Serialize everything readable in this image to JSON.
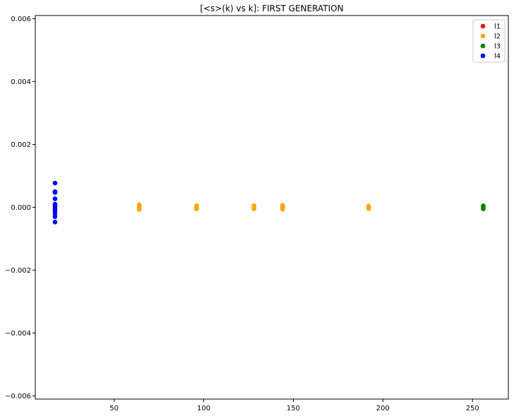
{
  "chart_data": {
    "type": "scatter",
    "title": "[<s>(k) vs k]: FIRST GENERATION",
    "xlabel": "",
    "ylabel": "",
    "xlim": [
      6,
      270
    ],
    "ylim": [
      -0.0061,
      0.0061
    ],
    "xticks": [
      50,
      100,
      150,
      200,
      250
    ],
    "yticks": [
      -0.006,
      -0.004,
      -0.002,
      0.0,
      0.002,
      0.004,
      0.006
    ],
    "ytick_labels": [
      "−0.006",
      "−0.004",
      "−0.002",
      "0.000",
      "0.002",
      "0.004",
      "0.006"
    ],
    "grid": false,
    "legend_position": "top-right",
    "series": [
      {
        "name": "l1",
        "color": "#ff0000",
        "x": [
          144,
          144,
          144
        ],
        "y": [
          3e-05,
          0.0,
          -3e-05
        ]
      },
      {
        "name": "l2",
        "color": "#ffa500",
        "x": [
          64,
          64,
          64,
          64,
          96,
          96,
          96,
          128,
          128,
          128,
          144,
          144,
          144,
          144,
          192,
          192,
          192
        ],
        "y": [
          8e-05,
          3e-05,
          -2e-05,
          -7e-05,
          5e-05,
          0.0,
          -5e-05,
          5e-05,
          0.0,
          -5e-05,
          6e-05,
          2e-05,
          -2e-05,
          -6e-05,
          4e-05,
          0.0,
          -4e-05
        ]
      },
      {
        "name": "l3",
        "color": "#008000",
        "x": [
          256,
          256,
          256,
          256
        ],
        "y": [
          5e-05,
          2e-05,
          -2e-05,
          -5e-05
        ]
      },
      {
        "name": "l4",
        "color": "#0000ff",
        "x": [
          17,
          17,
          17,
          17,
          17,
          17,
          17,
          17,
          17,
          17,
          17,
          17
        ],
        "y": [
          0.00077,
          0.0005,
          0.00047,
          0.00027,
          0.0001,
          5e-05,
          0.0,
          -5e-05,
          -0.00012,
          -0.0002,
          -0.0003,
          -0.00047
        ]
      }
    ]
  }
}
